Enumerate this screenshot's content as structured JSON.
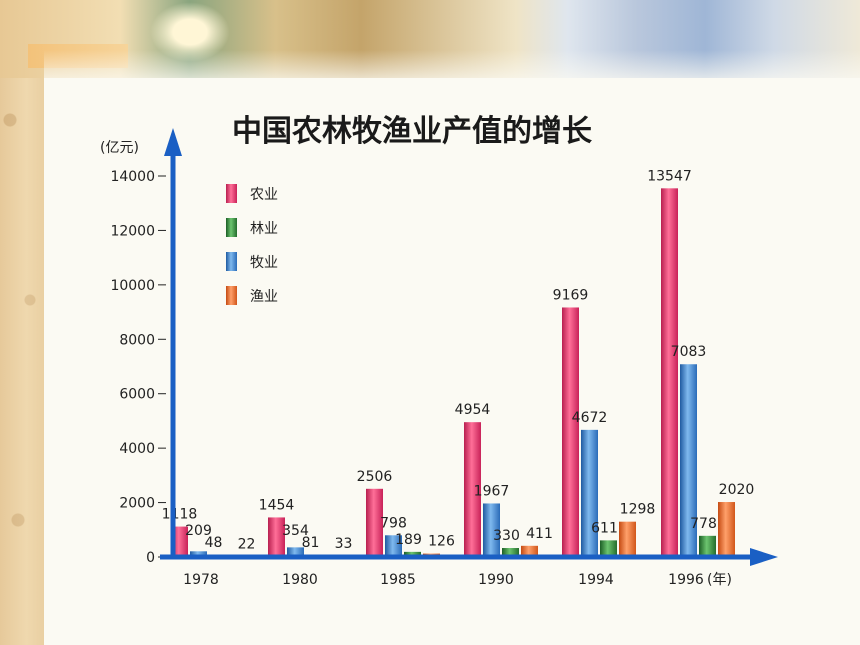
{
  "colors": {
    "农业": "#e8356e",
    "林业": "#2f8a3a",
    "牧业": "#3a86d4",
    "渔业": "#f06a2a",
    "axis": "#1a5fc4"
  },
  "chart_data": {
    "type": "bar",
    "title": "中国农林牧渔业产值的增长",
    "ylabel": "(亿元)",
    "xlabel": "(年)",
    "ylim": [
      0,
      14000
    ],
    "yticks": [
      "0",
      "2000",
      "4000",
      "6000",
      "8000",
      "10000",
      "12000",
      "14000"
    ],
    "categories": [
      "1978",
      "1980",
      "1985",
      "1990",
      "1994",
      "1996"
    ],
    "legend_position": "top-left",
    "series": [
      {
        "name": "农业",
        "values": [
          1118,
          1454,
          2506,
          4954,
          9169,
          13547
        ]
      },
      {
        "name": "林业",
        "values": [
          48,
          81,
          189,
          330,
          611,
          778
        ]
      },
      {
        "name": "牧业",
        "values": [
          209,
          354,
          798,
          1967,
          4672,
          7083
        ]
      },
      {
        "name": "渔业",
        "values": [
          22,
          33,
          126,
          411,
          1298,
          2020
        ]
      }
    ],
    "label_order": [
      0,
      1,
      2,
      3
    ],
    "bar_order": [
      0,
      2,
      1,
      3
    ]
  }
}
